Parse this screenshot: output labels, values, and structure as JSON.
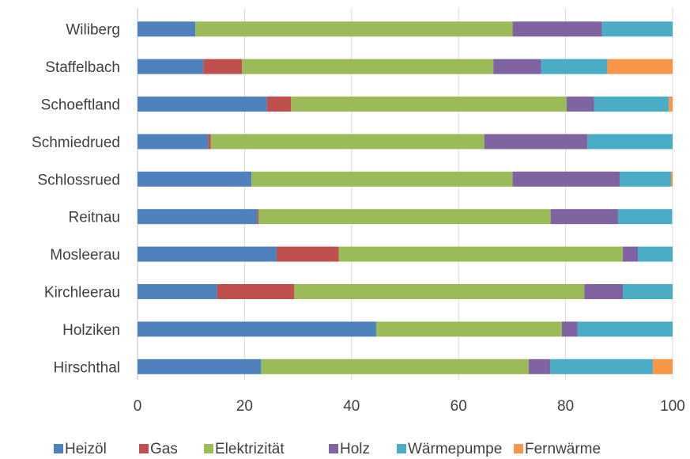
{
  "chart_data": {
    "type": "bar",
    "orientation": "horizontal",
    "stacked": true,
    "title": "",
    "xlabel": "",
    "ylabel": "",
    "xlim": [
      0,
      100
    ],
    "xticks": [
      "0",
      "20",
      "40",
      "60",
      "80",
      "100"
    ],
    "grid": true,
    "legend_position": "bottom",
    "categories": [
      "Wiliberg",
      "Staffelbach",
      "Schoeftland",
      "Schmiedrued",
      "Schlossrued",
      "Reitnau",
      "Mosleerau",
      "Kirchleerau",
      "Holziken",
      "Hirschthal"
    ],
    "series": [
      {
        "name": "Heizöl",
        "color": "#4f81bd",
        "values": [
          10.8,
          12.3,
          24.2,
          13.2,
          21.3,
          22.4,
          26.0,
          14.9,
          44.6,
          23.1
        ]
      },
      {
        "name": "Gas",
        "color": "#c0504d",
        "values": [
          0,
          7.2,
          4.5,
          0.5,
          0,
          0.2,
          11.6,
          14.4,
          0,
          0
        ]
      },
      {
        "name": "Elektrizität",
        "color": "#9bbb59",
        "values": [
          59.3,
          47.0,
          51.5,
          51.1,
          48.8,
          54.6,
          53.1,
          54.2,
          34.7,
          50.0
        ]
      },
      {
        "name": "Holz",
        "color": "#8064a2",
        "values": [
          16.7,
          8.9,
          5.1,
          19.3,
          20.0,
          12.6,
          2.8,
          7.2,
          2.9,
          4.0
        ]
      },
      {
        "name": "Wärmepumpe",
        "color": "#4bacc6",
        "values": [
          13.2,
          12.4,
          14.0,
          15.9,
          9.6,
          10.1,
          6.5,
          9.3,
          17.8,
          19.2
        ]
      },
      {
        "name": "Fernwärme",
        "color": "#f79646",
        "values": [
          0,
          12.2,
          0.7,
          0,
          0.3,
          0,
          0,
          0,
          0,
          3.7
        ]
      }
    ]
  }
}
